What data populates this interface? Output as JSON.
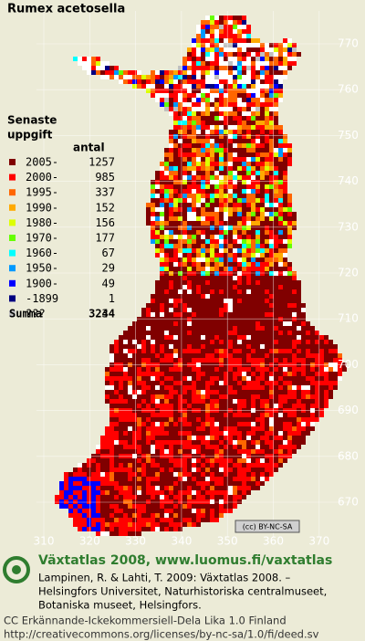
{
  "title": "Rumex acetosella",
  "legend": {
    "heading": [
      "Senaste",
      "uppgift"
    ],
    "count_heading": "antal",
    "items": [
      {
        "label": "2005-",
        "count": 1257,
        "color": "#800000"
      },
      {
        "label": "2000-",
        "count": 985,
        "color": "#ff0000"
      },
      {
        "label": "1995-",
        "count": 337,
        "color": "#ff6600"
      },
      {
        "label": "1990-",
        "count": 152,
        "color": "#ffaa00"
      },
      {
        "label": "1980-",
        "count": 156,
        "color": "#ddff00"
      },
      {
        "label": "1970-",
        "count": 177,
        "color": "#66ff00"
      },
      {
        "label": "1960-",
        "count": 67,
        "color": "#00ffff"
      },
      {
        "label": "1950-",
        "count": 29,
        "color": "#0099ff"
      },
      {
        "label": "1900-",
        "count": 49,
        "color": "#0000ff"
      },
      {
        "label": "-1899",
        "count": 1,
        "color": "#000080"
      },
      {
        "label": "???",
        "count": 34,
        "color": "#c0c0c0"
      }
    ],
    "total_label": "Summa",
    "total": 3244
  },
  "axes": {
    "y_labels": [
      770,
      760,
      750,
      740,
      730,
      720,
      710,
      700,
      690,
      680,
      670
    ],
    "x_labels": [
      310,
      320,
      330,
      340,
      350,
      360,
      370
    ]
  },
  "badge": "(cc) BY-NC-SA",
  "footer": {
    "site": "Växtatlas 2008, www.luomus.fi/vaxtatlas",
    "citation": [
      "Lampinen, R. & Lahti, T. 2009: Växtatlas 2008. –",
      "Helsingfors Universitet, Naturhistoriska centralmuseet,",
      "Botaniska museet, Helsingfors."
    ],
    "license": [
      "CC Erkännande-Ickekommersiell-Dela Lika 1.0 Finland",
      "http://creativecommons.org/licenses/by-nc-sa/1.0/fi/deed.sv"
    ]
  }
}
